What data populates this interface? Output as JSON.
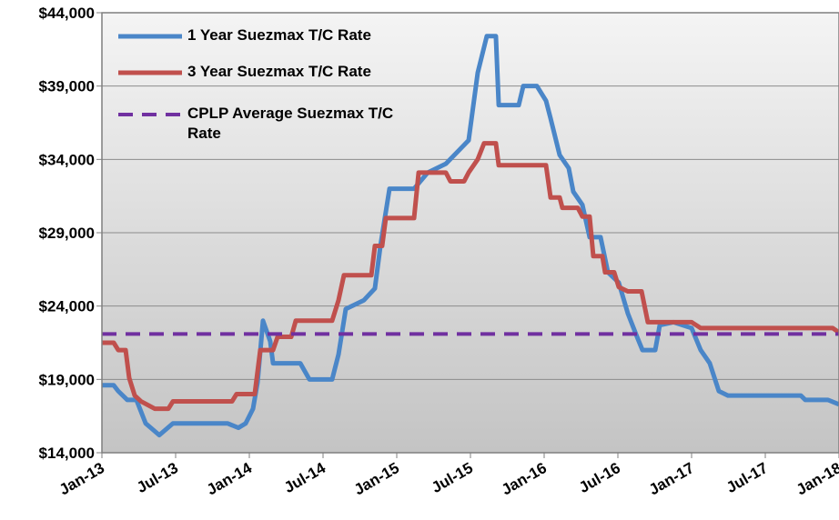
{
  "chart_data": {
    "type": "line",
    "xlim": [
      0,
      60
    ],
    "xticks": [
      {
        "value": 0,
        "label": "Jan-13"
      },
      {
        "value": 6,
        "label": "Jul-13"
      },
      {
        "value": 12,
        "label": "Jan-14"
      },
      {
        "value": 18,
        "label": "Jul-14"
      },
      {
        "value": 24,
        "label": "Jan-15"
      },
      {
        "value": 30,
        "label": "Jul-15"
      },
      {
        "value": 36,
        "label": "Jan-16"
      },
      {
        "value": 42,
        "label": "Jul-16"
      },
      {
        "value": 48,
        "label": "Jan-17"
      },
      {
        "value": 54,
        "label": "Jul-17"
      },
      {
        "value": 60,
        "label": "Jan-18"
      }
    ],
    "ylim": [
      14000,
      44000
    ],
    "yticks": [
      {
        "value": 14000,
        "label": "$14,000"
      },
      {
        "value": 19000,
        "label": "$19,000"
      },
      {
        "value": 24000,
        "label": "$24,000"
      },
      {
        "value": 29000,
        "label": "$29,000"
      },
      {
        "value": 34000,
        "label": "$34,000"
      },
      {
        "value": 39000,
        "label": "$39,000"
      },
      {
        "value": 44000,
        "label": "$44,000"
      }
    ],
    "grid": true,
    "legend": "top-left",
    "series": [
      {
        "name": "1 Year Suezmax T/C Rate",
        "color": "#4a86c8",
        "style": "solid",
        "x": [
          0,
          0.96,
          1.33,
          2.07,
          2.81,
          3.56,
          4.67,
          5.78,
          10.22,
          11.11,
          11.7,
          12.3,
          12.67,
          13.11,
          13.7,
          13.93,
          16.15,
          16.89,
          18.74,
          19.26,
          19.85,
          21.33,
          22.22,
          22.67,
          23.41,
          25.41,
          26.52,
          28,
          29.85,
          30.59,
          31.33,
          32.07,
          32.3,
          33.93,
          34.3,
          35.41,
          36.15,
          36.52,
          37.26,
          38,
          38.37,
          39.11,
          39.7,
          40.59,
          41.19,
          42.07,
          42.81,
          43.56,
          44,
          45.04,
          45.41,
          46.52,
          48,
          48.74,
          49.48,
          50.22,
          50.96,
          56.89,
          57.26,
          59.11,
          60
        ],
        "values": [
          18600,
          18600,
          18200,
          17600,
          17600,
          16000,
          15200,
          16000,
          16000,
          15700,
          16000,
          17000,
          18800,
          23000,
          21600,
          20100,
          20100,
          19000,
          19000,
          20700,
          23800,
          24400,
          25200,
          28100,
          32000,
          32000,
          33100,
          33700,
          35300,
          39900,
          42400,
          42400,
          37700,
          37700,
          39000,
          39000,
          38000,
          36800,
          34300,
          33400,
          31800,
          30900,
          28700,
          28700,
          26300,
          25600,
          23500,
          21900,
          21000,
          21000,
          22700,
          22900,
          22500,
          21000,
          20100,
          18200,
          17900,
          17900,
          17600,
          17600,
          17300
        ]
      },
      {
        "name": "3 Year Suezmax T/C Rate",
        "color": "#c0504d",
        "style": "solid",
        "x": [
          0,
          0.96,
          1.33,
          1.93,
          2.22,
          2.67,
          3.19,
          4.3,
          5.41,
          5.78,
          10.59,
          10.96,
          12.44,
          12.89,
          13.93,
          14.3,
          15.41,
          15.78,
          18.74,
          19.26,
          19.7,
          21.93,
          22.22,
          22.81,
          23.11,
          25.41,
          25.78,
          28,
          28.37,
          29.48,
          29.85,
          30.59,
          31.11,
          32.07,
          32.3,
          36.15,
          36.52,
          37.26,
          37.48,
          38.74,
          39.11,
          39.7,
          40,
          40.74,
          40.96,
          41.7,
          42.07,
          42.81,
          43.93,
          44.44,
          48,
          48.74,
          59.48,
          60
        ],
        "values": [
          21500,
          21500,
          21000,
          21000,
          19100,
          17900,
          17500,
          17000,
          17000,
          17500,
          17500,
          18000,
          18000,
          21000,
          21000,
          21900,
          21900,
          23000,
          23000,
          24400,
          26100,
          26100,
          28100,
          28100,
          30000,
          30000,
          33100,
          33100,
          32500,
          32500,
          33100,
          34000,
          35100,
          35100,
          33600,
          33600,
          31400,
          31400,
          30700,
          30700,
          30100,
          30100,
          27400,
          27400,
          26300,
          26300,
          25300,
          25000,
          25000,
          22900,
          22900,
          22500,
          22500,
          22200
        ]
      },
      {
        "name": "CPLP Average Suezmax T/C Rate",
        "color": "#7030a0",
        "style": "dashed",
        "x": [
          0,
          60
        ],
        "values": [
          22100,
          22100
        ]
      }
    ]
  }
}
